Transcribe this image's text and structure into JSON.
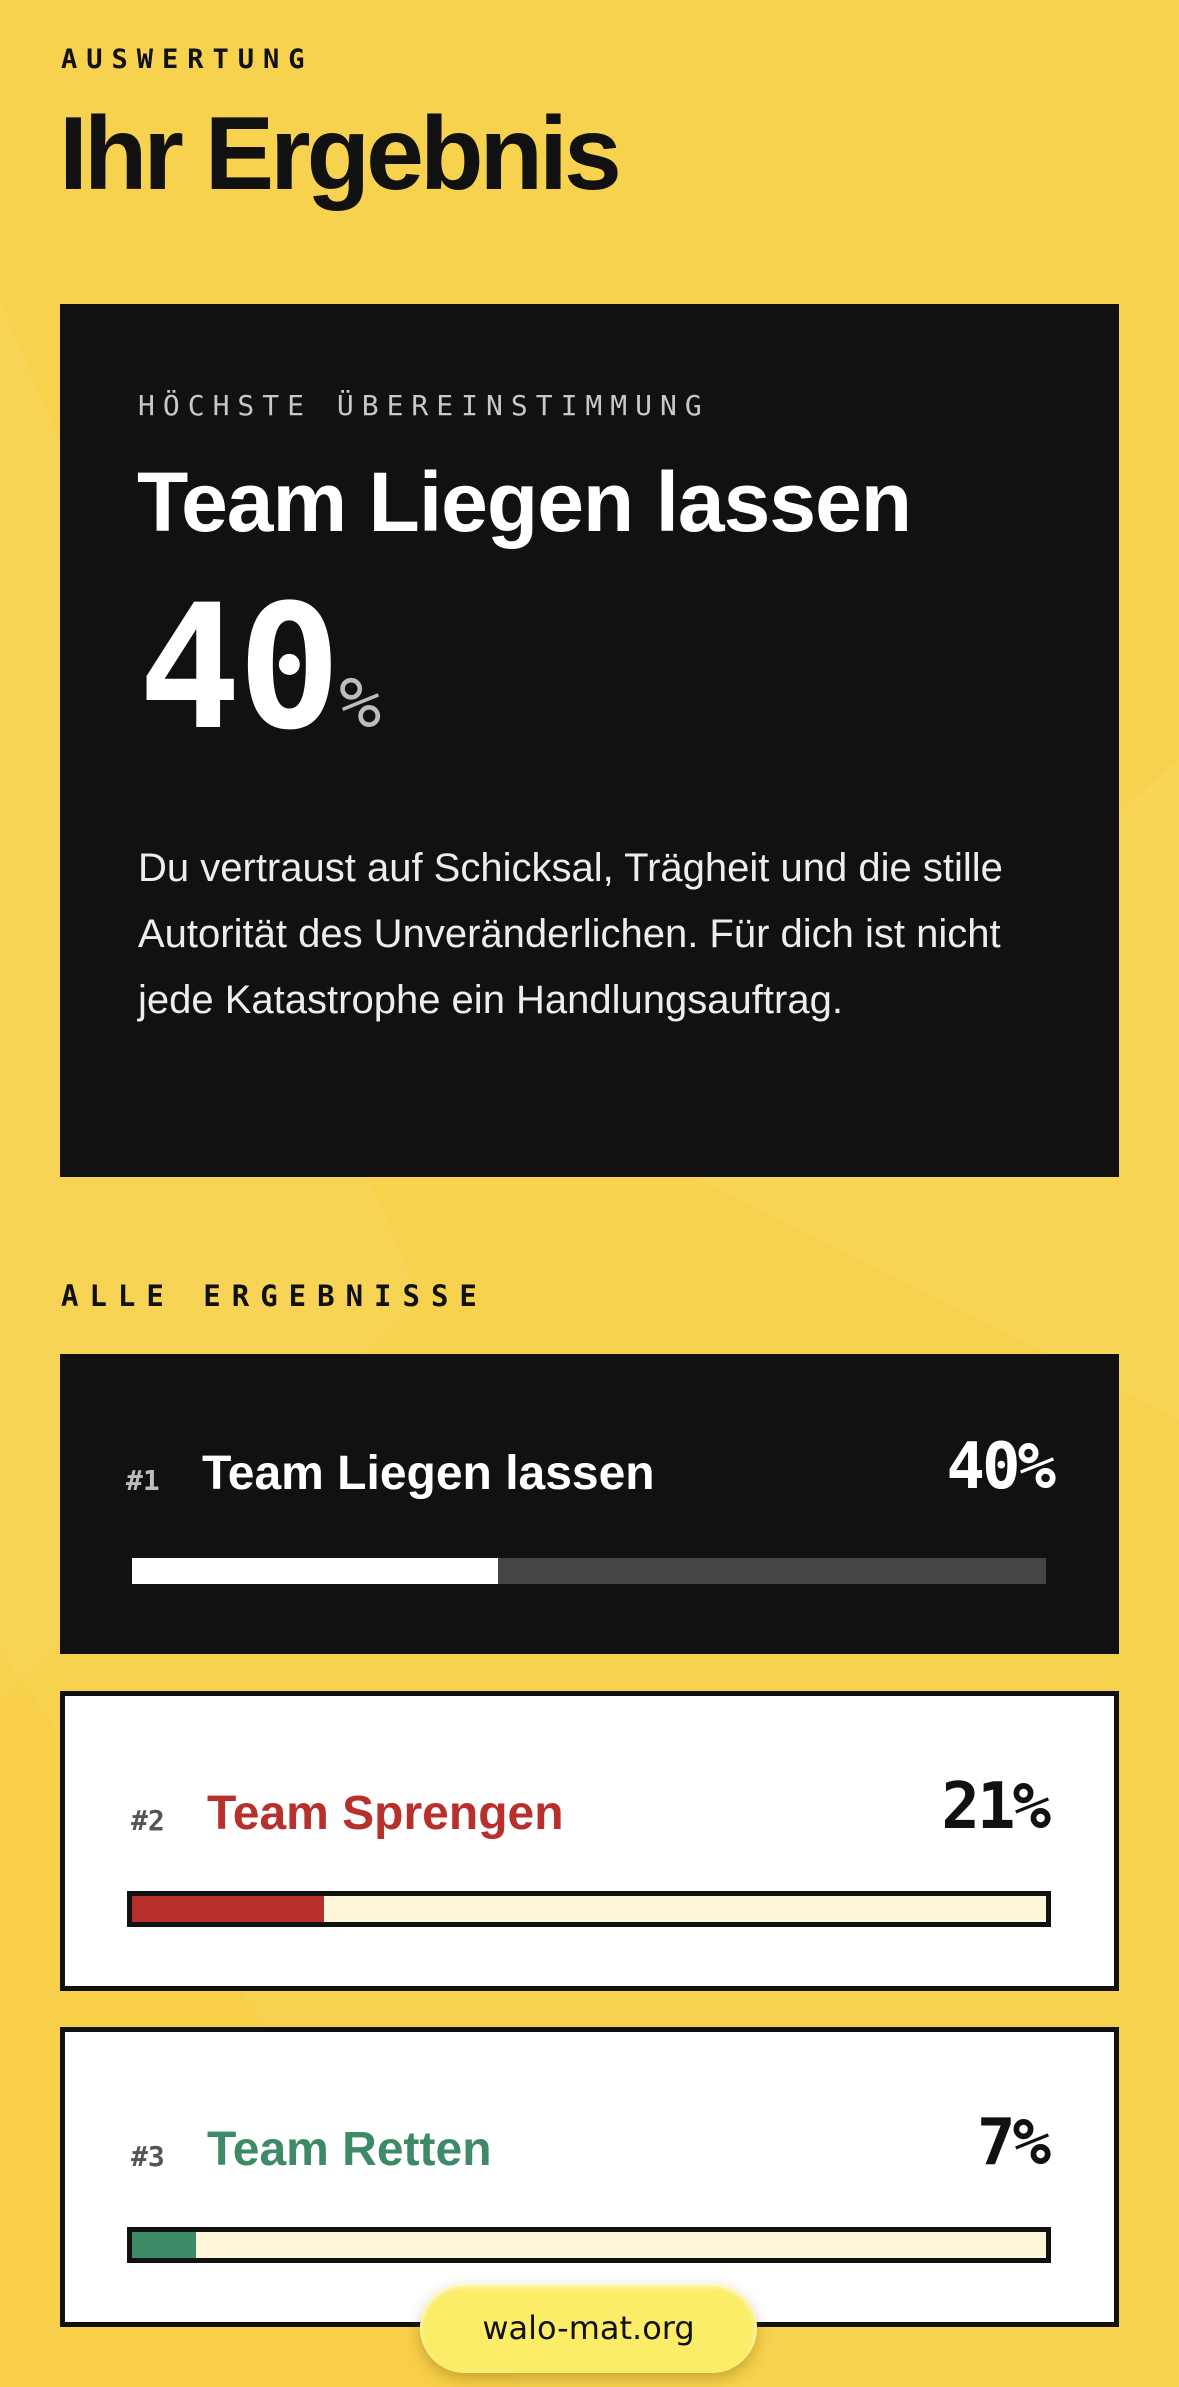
{
  "header": {
    "eyebrow": "AUSWERTUNG",
    "title": "Ihr Ergebnis"
  },
  "hero": {
    "eyebrow": "HÖCHSTE ÜBEREINSTIMMUNG",
    "team": "Team Liegen lassen",
    "percent_number": "40",
    "percent_sign": "%",
    "description": "Du vertraust auf Schicksal, Trägheit und die stille Autorität des Unveränderlichen. Für dich ist nicht jede Katastrophe ein Handlungsauftrag."
  },
  "results": {
    "section_title": "ALLE ERGEBNISSE",
    "items": [
      {
        "rank": "#1",
        "name": "Team Liegen lassen",
        "percent_label": "40%",
        "value": 0.4,
        "style": "dark",
        "name_color": "#ffffff",
        "bar_color": "#ffffff",
        "track_color": "#444444"
      },
      {
        "rank": "#2",
        "name": "Team Sprengen",
        "percent_label": "21%",
        "value": 0.21,
        "style": "light",
        "name_color": "#b8302b",
        "bar_color": "#b8302b",
        "track_color": "#fdf6d8"
      },
      {
        "rank": "#3",
        "name": "Team Retten",
        "percent_label": "7%",
        "value": 0.07,
        "style": "light",
        "name_color": "#3e8a66",
        "bar_color": "#3e8a66",
        "track_color": "#fdf6d8"
      }
    ]
  },
  "footer": {
    "domain": "walo-mat.org"
  },
  "colors": {
    "background": "#f7d24e",
    "card_dark": "#111111",
    "pill": "#fbed67"
  }
}
